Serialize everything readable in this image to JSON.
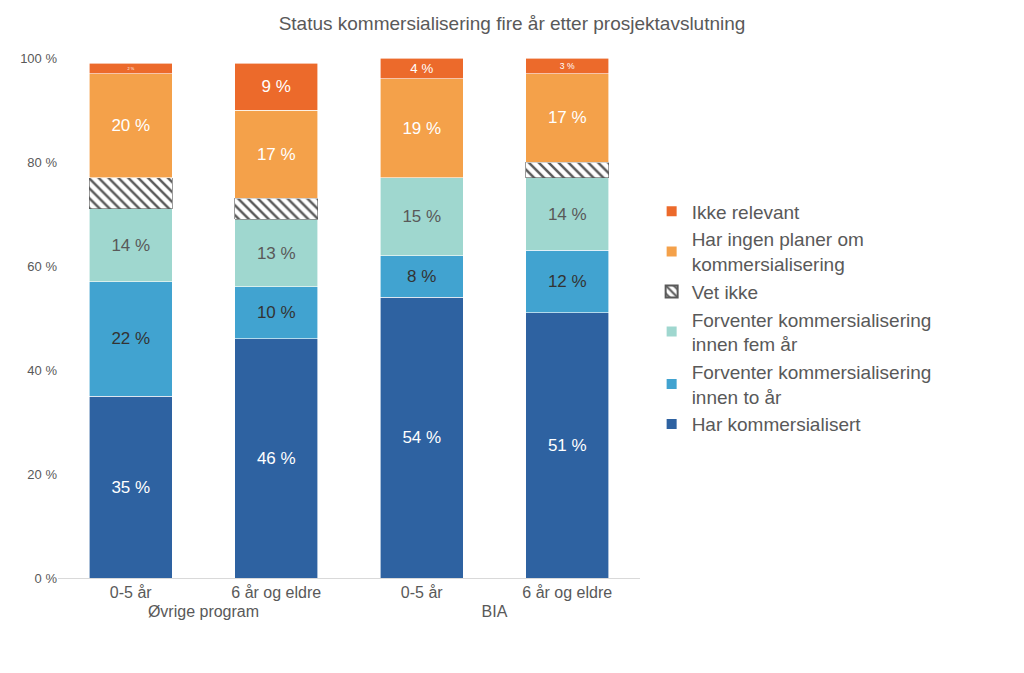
{
  "chart_data": {
    "type": "bar",
    "title": "Status kommersialisering fire år etter prosjektavslutning",
    "categories": [
      "0-5 år",
      "6 år og eldre",
      "0-5 år",
      "6 år og eldre"
    ],
    "groups": [
      "Øvrige program",
      "Øvrige program",
      "BIA",
      "BIA"
    ],
    "stacked": true,
    "grid": false,
    "legend": "right",
    "ylim": [
      0,
      100
    ],
    "yticks": [
      {
        "value": 0,
        "label": "0 %"
      },
      {
        "value": 20,
        "label": "20 %"
      },
      {
        "value": 40,
        "label": "40 %"
      },
      {
        "value": 60,
        "label": "60 %"
      },
      {
        "value": 80,
        "label": "80 %"
      },
      {
        "value": 100,
        "label": "100 %"
      }
    ],
    "series": [
      {
        "name": "Har kommersialisert",
        "color": "#2e62a1",
        "data_labels": true,
        "values": [
          35,
          46,
          54,
          51
        ],
        "value_labels": [
          "35 %",
          "46 %",
          "54 %",
          "51 %"
        ]
      },
      {
        "name": "Forventer kommersialisering innen to år",
        "color": "#41a3d0",
        "data_labels": true,
        "values": [
          22,
          10,
          8,
          12
        ],
        "value_labels": [
          "22 %",
          "10 %",
          "8 %",
          "12 %"
        ]
      },
      {
        "name": "Forventer kommersialisering innen fem år",
        "color": "#9fd7cf",
        "data_labels": true,
        "values": [
          14,
          13,
          15,
          14
        ],
        "value_labels": [
          "14 %",
          "13 %",
          "15 %",
          "14 %"
        ]
      },
      {
        "name": "Vet ikke",
        "color": "#595959",
        "marker": "hatch",
        "data_labels": false,
        "values": [
          6,
          4,
          0,
          3
        ]
      },
      {
        "name": "Har ingen planer om kommersialisering",
        "color": "#f4a14a",
        "data_labels": true,
        "values": [
          20,
          17,
          19,
          17
        ],
        "value_labels": [
          "20 %",
          "17 %",
          "19 %",
          "17 %"
        ]
      },
      {
        "name": "Ikke relevant",
        "color": "#ec6a2b",
        "data_labels": true,
        "values": [
          2,
          9,
          4,
          3
        ],
        "value_labels": [
          "2 %",
          "9 %",
          "4 %",
          "3 %"
        ]
      }
    ]
  }
}
